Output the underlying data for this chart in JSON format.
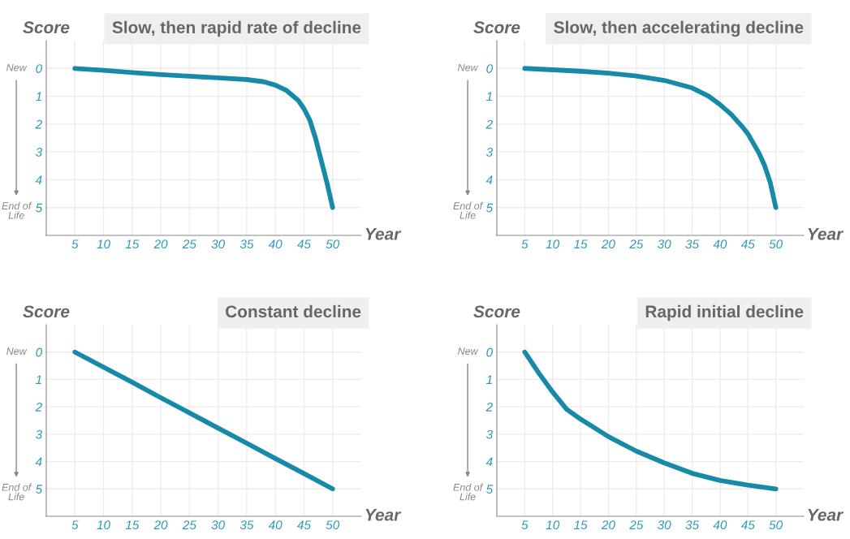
{
  "chart_data": [
    {
      "type": "line",
      "title": "Slow, then rapid rate of decline",
      "ylabel": "Score",
      "xlabel": "Year",
      "xlim": [
        0,
        55
      ],
      "ylim": [
        6,
        -1
      ],
      "xticks": [
        5,
        10,
        15,
        20,
        25,
        30,
        35,
        40,
        45,
        50
      ],
      "yticks": [
        0,
        1,
        2,
        3,
        4,
        5
      ],
      "grid": true,
      "tick_labels": true,
      "annotations": [
        "New",
        "End of\nLife"
      ],
      "series": [
        {
          "color": "#168aa8",
          "x": [
            5,
            10,
            15,
            20,
            25,
            30,
            35,
            38,
            40,
            42,
            44,
            45,
            46,
            47,
            48,
            49,
            50
          ],
          "values": [
            0,
            0.07,
            0.15,
            0.22,
            0.28,
            0.34,
            0.4,
            0.48,
            0.6,
            0.8,
            1.15,
            1.45,
            1.85,
            2.5,
            3.3,
            4.1,
            5
          ]
        }
      ]
    },
    {
      "type": "line",
      "title": "Slow, then accelerating decline",
      "ylabel": "Score",
      "xlabel": "Year",
      "xlim": [
        0,
        55
      ],
      "ylim": [
        6,
        -1
      ],
      "xticks": [
        5,
        10,
        15,
        20,
        25,
        30,
        35,
        40,
        45,
        50
      ],
      "yticks": [
        0,
        1,
        2,
        3,
        4,
        5
      ],
      "grid": true,
      "annotations": [
        "New",
        "End of\nLife"
      ],
      "series": [
        {
          "color": "#168aa8",
          "x": [
            5,
            10,
            15,
            20,
            25,
            30,
            35,
            38,
            40,
            42,
            44,
            45,
            46,
            47,
            48,
            49,
            50
          ],
          "values": [
            0,
            0.05,
            0.1,
            0.17,
            0.27,
            0.43,
            0.7,
            1.0,
            1.3,
            1.65,
            2.1,
            2.35,
            2.7,
            3.05,
            3.5,
            4.1,
            5
          ]
        }
      ]
    },
    {
      "type": "line",
      "title": "Constant decline",
      "ylabel": "Score",
      "xlabel": "Year",
      "xlim": [
        0,
        55
      ],
      "ylim": [
        6,
        -1
      ],
      "xticks": [
        5,
        10,
        15,
        20,
        25,
        30,
        35,
        40,
        45,
        50
      ],
      "yticks": [
        0,
        1,
        2,
        3,
        4,
        5
      ],
      "grid": true,
      "annotations": [
        "New",
        "End of\nLife"
      ],
      "series": [
        {
          "color": "#168aa8",
          "x": [
            5,
            15,
            20,
            25,
            30,
            35,
            40,
            45,
            50
          ],
          "values": [
            0,
            1.1,
            1.67,
            2.22,
            2.78,
            3.33,
            3.89,
            4.44,
            5
          ]
        }
      ]
    },
    {
      "type": "line",
      "title": "Rapid initial decline",
      "ylabel": "Score",
      "xlabel": "Year",
      "xlim": [
        0,
        55
      ],
      "ylim": [
        6,
        -1
      ],
      "xticks": [
        5,
        10,
        15,
        20,
        25,
        30,
        35,
        40,
        45,
        50
      ],
      "yticks": [
        0,
        1,
        2,
        3,
        4,
        5
      ],
      "grid": true,
      "annotations": [
        "New",
        "End of\nLife"
      ],
      "series": [
        {
          "color": "#168aa8",
          "x": [
            5,
            7.6,
            10,
            12.5,
            15,
            20,
            25,
            30,
            35,
            40,
            45,
            50
          ],
          "values": [
            0,
            0.79,
            1.46,
            2.09,
            2.45,
            3.09,
            3.62,
            4.05,
            4.43,
            4.69,
            4.86,
            5
          ]
        }
      ]
    }
  ]
}
